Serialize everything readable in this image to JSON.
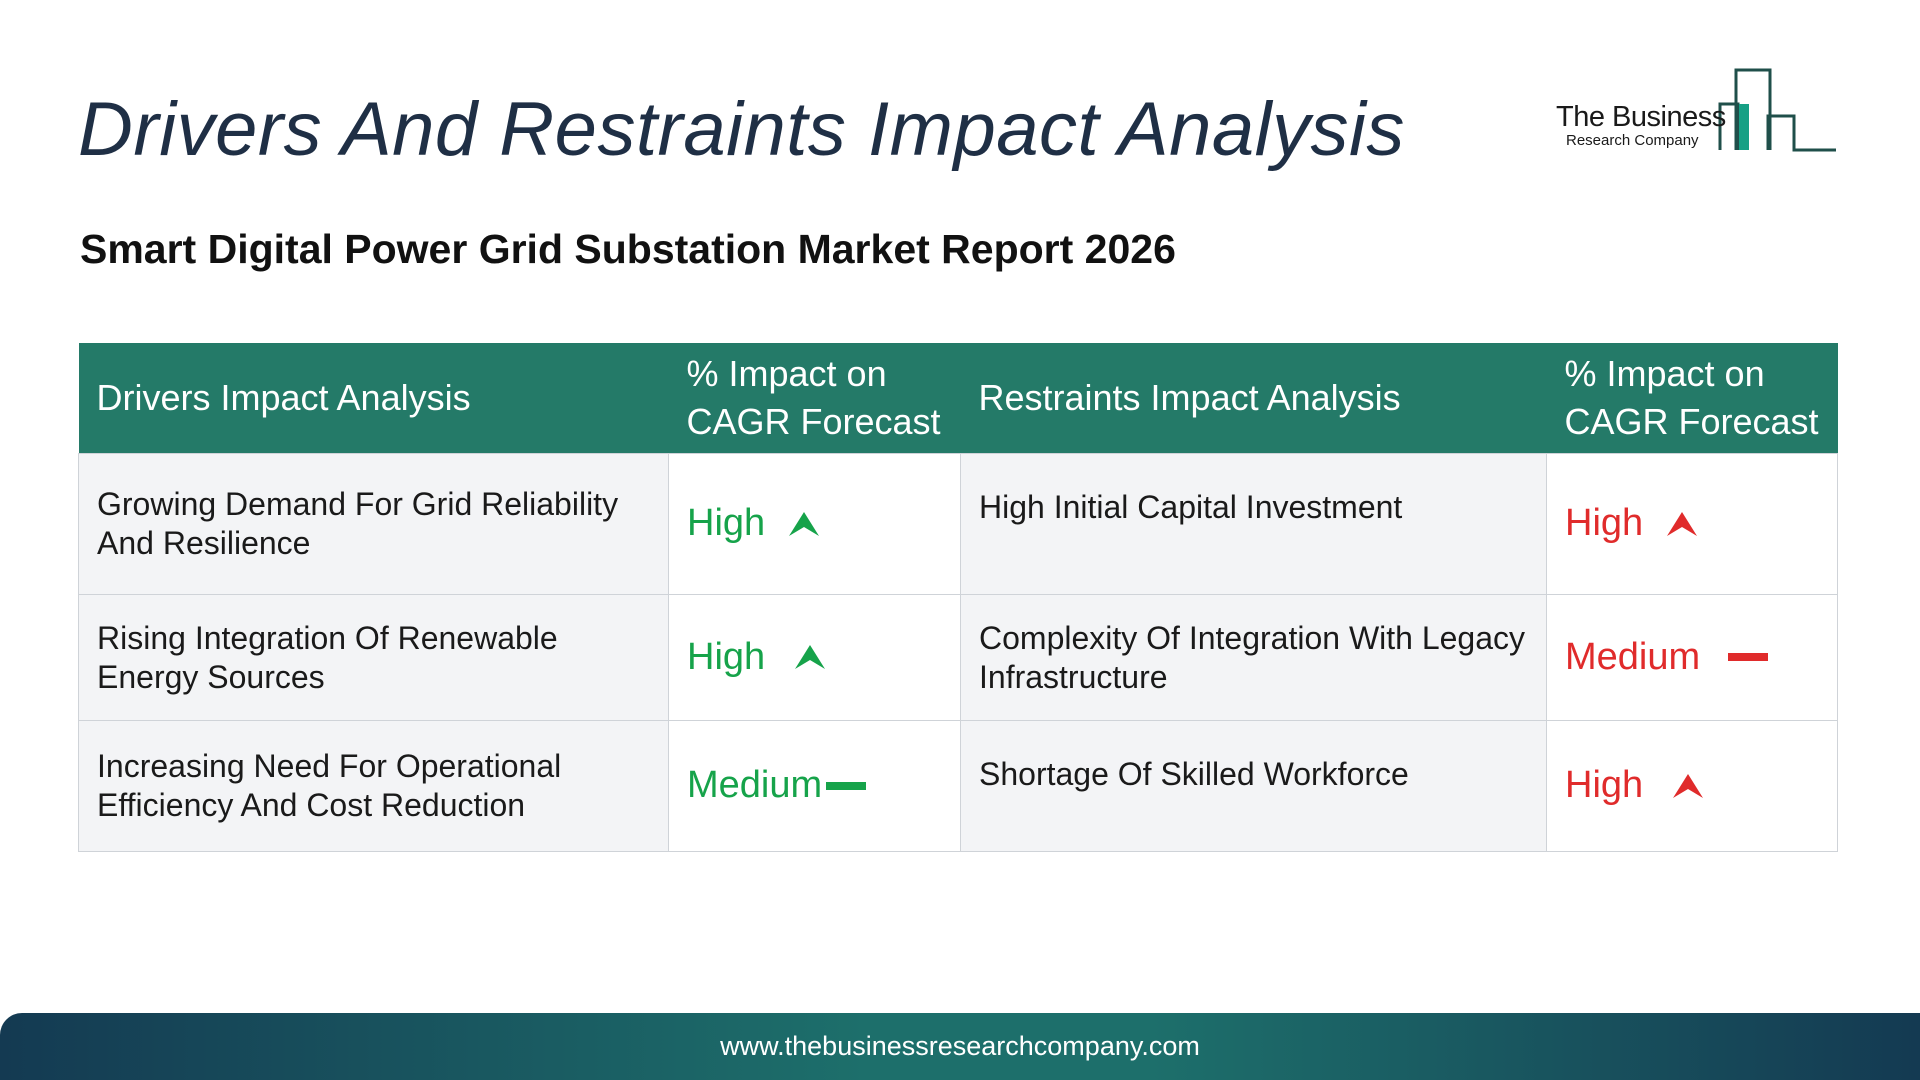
{
  "title": "Drivers And Restraints Impact Analysis",
  "subtitle": "Smart Digital Power Grid Substation Market Report 2026",
  "logo": {
    "line1": "The Business",
    "line2": "Research Company"
  },
  "table": {
    "headers": {
      "drivers": "Drivers Impact Analysis",
      "drivers_impact": "% Impact on CAGR Forecast",
      "restraints": "Restraints Impact Analysis",
      "restraints_impact": "% Impact on CAGR Forecast"
    },
    "rows": [
      {
        "driver": "Growing Demand For Grid Reliability And Resilience",
        "driver_impact": "High",
        "restraint": "High Initial Capital Investment",
        "restraint_impact": "High"
      },
      {
        "driver": "Rising Integration Of Renewable Energy Sources",
        "driver_impact": "High",
        "restraint": "Complexity Of Integration With Legacy Infrastructure",
        "restraint_impact": "Medium"
      },
      {
        "driver": "Increasing Need For Operational Efficiency And Cost Reduction",
        "driver_impact": "Medium",
        "restraint": "Shortage Of Skilled Workforce",
        "restraint_impact": "High"
      }
    ]
  },
  "colors": {
    "header_bg": "#247a68",
    "driver_level": "#16a34a",
    "restraint_level": "#e02b2b"
  },
  "icons": {
    "high": "up-arrow-icon",
    "medium": "dash-icon"
  },
  "footer": {
    "url": "www.thebusinessresearchcompany.com"
  }
}
